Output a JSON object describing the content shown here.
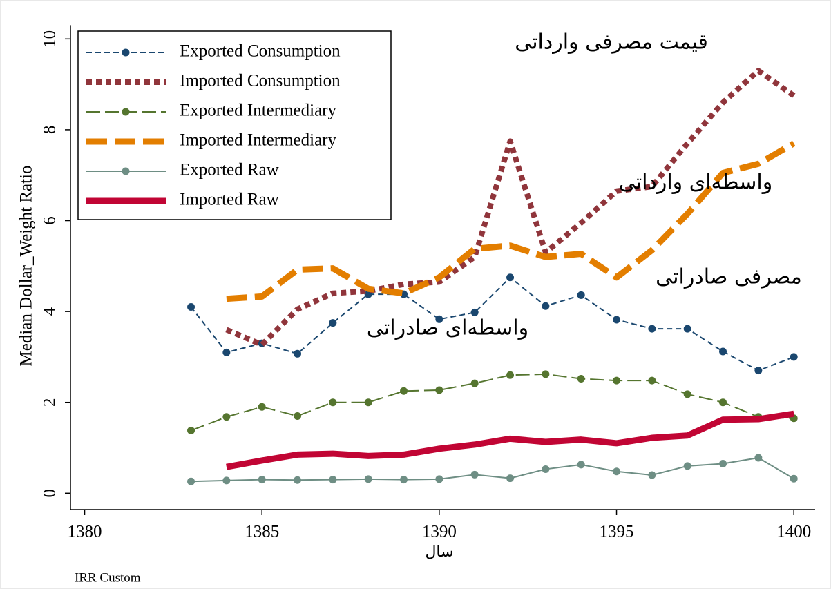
{
  "chart_data": {
    "type": "line",
    "ylabel": "Median Dollar_Weight Ratio",
    "xlabel": "سال",
    "note": "IRR Custom",
    "annotations": [
      "قیمت مصرفی وارداتی",
      "واسطه‌ای وارداتی",
      "مصرفی صادراتی",
      "واسطه‌ای صادراتی"
    ],
    "x": [
      1383,
      1384,
      1385,
      1386,
      1387,
      1388,
      1389,
      1390,
      1391,
      1392,
      1393,
      1394,
      1395,
      1396,
      1397,
      1398,
      1399,
      1400
    ],
    "xlim": [
      1379.6,
      1400.6
    ],
    "xticks": [
      1380,
      1385,
      1390,
      1395,
      1400
    ],
    "ylim": [
      -0.36,
      10.4
    ],
    "yticks": [
      0,
      2,
      4,
      6,
      8,
      10
    ],
    "legend": "top-left",
    "series": [
      {
        "name": "Exported Consumption",
        "color": "#1a476f",
        "style": "short-dash",
        "markers": true,
        "values": [
          4.1,
          3.1,
          3.3,
          3.07,
          3.75,
          4.38,
          4.38,
          3.83,
          3.98,
          4.75,
          4.12,
          4.36,
          3.82,
          3.62,
          3.62,
          3.12,
          2.7,
          3.0
        ]
      },
      {
        "name": "Imported Consumption",
        "color": "#90353b",
        "style": "thick-dot",
        "markers": false,
        "values": [
          null,
          3.6,
          3.27,
          4.05,
          4.4,
          4.45,
          4.6,
          4.65,
          5.2,
          7.75,
          5.3,
          5.95,
          6.65,
          6.75,
          7.7,
          8.6,
          9.3,
          8.75
        ]
      },
      {
        "name": "Exported Intermediary",
        "color": "#55752f",
        "style": "long-dash",
        "markers": true,
        "values": [
          1.38,
          1.68,
          1.9,
          1.7,
          2.0,
          2.0,
          2.25,
          2.27,
          2.42,
          2.6,
          2.62,
          2.52,
          2.48,
          2.48,
          2.18,
          2.0,
          1.68,
          1.65
        ]
      },
      {
        "name": "Imported Intermediary",
        "color": "#e37e00",
        "style": "thick-dash",
        "markers": false,
        "values": [
          null,
          4.28,
          4.33,
          4.92,
          4.95,
          4.5,
          4.4,
          4.75,
          5.38,
          5.45,
          5.2,
          5.27,
          4.75,
          5.35,
          6.15,
          7.05,
          7.25,
          7.7
        ]
      },
      {
        "name": "Exported Raw",
        "color": "#6e8e84",
        "style": "solid",
        "markers": true,
        "values": [
          0.26,
          0.28,
          0.3,
          0.29,
          0.3,
          0.31,
          0.3,
          0.31,
          0.41,
          0.33,
          0.53,
          0.63,
          0.48,
          0.4,
          0.6,
          0.65,
          0.78,
          0.32
        ]
      },
      {
        "name": "Imported Raw",
        "color": "#c10534",
        "style": "thick-solid",
        "markers": false,
        "values": [
          null,
          0.58,
          0.72,
          0.85,
          0.87,
          0.82,
          0.85,
          0.98,
          1.07,
          1.2,
          1.13,
          1.18,
          1.1,
          1.22,
          1.27,
          1.62,
          1.63,
          1.75
        ]
      }
    ]
  }
}
